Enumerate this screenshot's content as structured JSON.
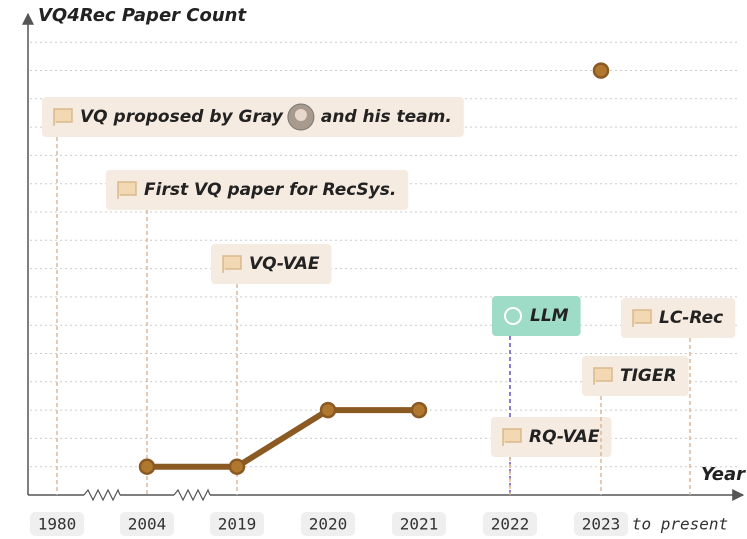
{
  "chart_data": {
    "type": "line",
    "y_label": "VQ4Rec Paper Count",
    "x_label": "Year",
    "categories": [
      "1980",
      "2004",
      "2019",
      "2020",
      "2021",
      "2022",
      "2023",
      "to present"
    ],
    "values": [
      null,
      1,
      1,
      3,
      3,
      null,
      15,
      null
    ],
    "color": "#8b5a23",
    "marker_color": "#b0782f",
    "ylim": [
      0,
      17
    ],
    "grid": true,
    "annotations": [
      {
        "x": 0,
        "text": "VQ proposed by Gray",
        "text_after": "and his team."
      },
      {
        "x": 1,
        "text": "First VQ paper for RecSys."
      },
      {
        "x": 2,
        "text": "VQ-VAE"
      },
      {
        "x": 5,
        "text": "LLM"
      },
      {
        "x": 5,
        "text": "RQ-VAE"
      },
      {
        "x": 6,
        "text": "TIGER"
      },
      {
        "x": 7,
        "text": "LC-Rec"
      }
    ]
  }
}
